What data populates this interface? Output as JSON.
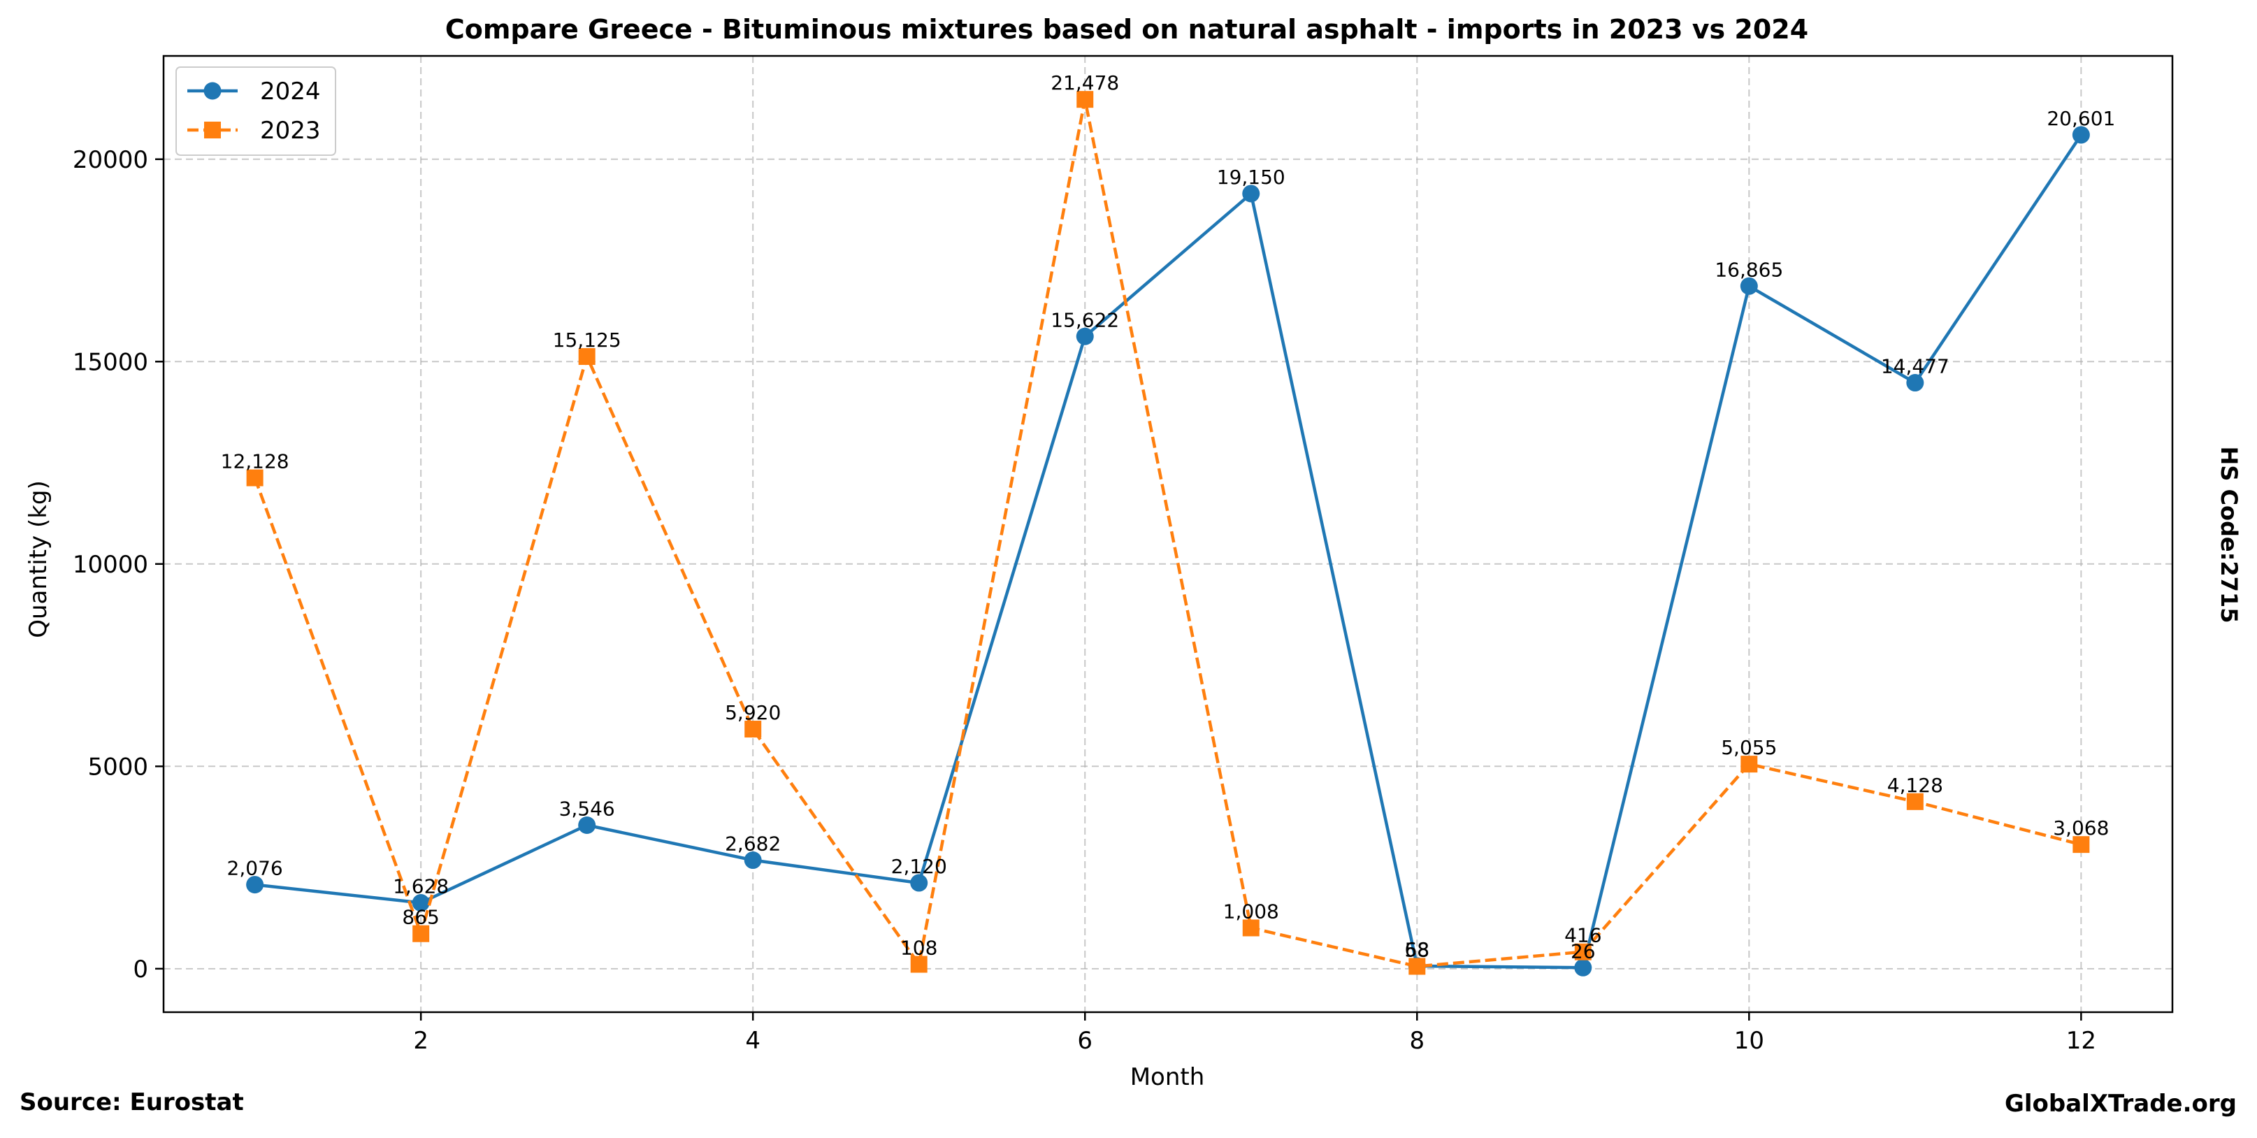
{
  "chart_data": {
    "type": "line",
    "title": "Compare Greece - Bituminous mixtures based on natural asphalt - imports in 2023 vs 2024",
    "xlabel": "Month",
    "ylabel": "Quantity (kg)",
    "xlim": [
      0.45,
      12.55
    ],
    "ylim": [
      -1074,
      22552
    ],
    "x_ticks": [
      2,
      4,
      6,
      8,
      10,
      12
    ],
    "y_ticks": [
      0,
      5000,
      10000,
      15000,
      20000
    ],
    "grid": true,
    "legend_position": "top-left",
    "x": [
      1,
      2,
      3,
      4,
      5,
      6,
      7,
      8,
      9,
      10,
      11,
      12
    ],
    "series": [
      {
        "name": "2024",
        "color": "#1f77b4",
        "line_style": "solid",
        "marker": "circle",
        "values": [
          2076,
          1628,
          3546,
          2682,
          2120,
          15622,
          19150,
          68,
          26,
          16865,
          14477,
          20601
        ],
        "labels": [
          "2,076",
          "1,628",
          "3,546",
          "2,682",
          "2,120",
          "15,622",
          "19,150",
          "68",
          "26",
          "16,865",
          "14,477",
          "20,601"
        ]
      },
      {
        "name": "2023",
        "color": "#ff7f0e",
        "line_style": "dashed",
        "marker": "square",
        "values": [
          12128,
          865,
          15125,
          5920,
          108,
          21478,
          1008,
          58,
          416,
          5055,
          4128,
          3068
        ],
        "labels": [
          "12,128",
          "865",
          "15,125",
          "5,920",
          "108",
          "21,478",
          "1,008",
          "58",
          "416",
          "5,055",
          "4,128",
          "3,068"
        ]
      }
    ]
  },
  "side_label": "HS Code:2715",
  "footer": {
    "source": "Source: Eurostat",
    "brand": "GlobalXTrade.org"
  }
}
